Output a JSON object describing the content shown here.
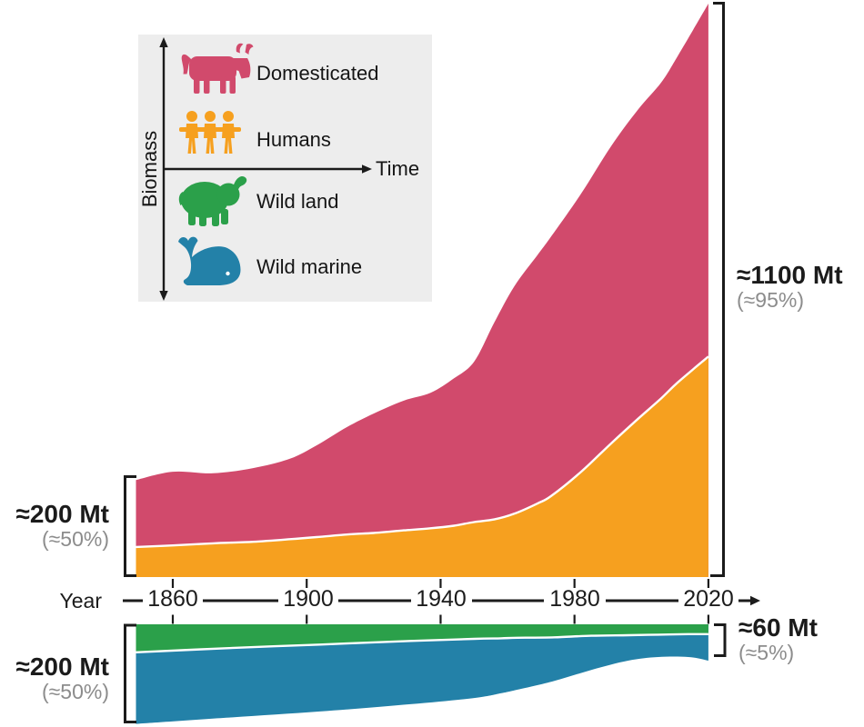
{
  "page": {
    "background": "#ffffff"
  },
  "colors": {
    "domesticated": "#d14a6c",
    "humans": "#f6a01f",
    "wild_land": "#2ba04a",
    "wild_marine": "#2381a8",
    "text_dark": "#1b1b1b",
    "text_gray": "#8c8c8c",
    "legend_bg": "#ededed",
    "separator": "#ffffff"
  },
  "legend": {
    "y_axis_label": "Biomass",
    "x_axis_label": "Time",
    "items": [
      {
        "label": "Domesticated",
        "icon": "cow-icon",
        "color": "#d14a6c"
      },
      {
        "label": "Humans",
        "icon": "humans-icon",
        "color": "#f6a01f"
      },
      {
        "label": "Wild land",
        "icon": "elephant-icon",
        "color": "#2ba04a"
      },
      {
        "label": "Wild marine",
        "icon": "whale-icon",
        "color": "#2381a8"
      }
    ]
  },
  "axis": {
    "label": "Year",
    "ticks": [
      "1860",
      "1900",
      "1940",
      "1980",
      "2020"
    ]
  },
  "annotations": {
    "top_left": {
      "main": "≈200 Mt",
      "sub": "(≈50%)"
    },
    "top_right": {
      "main": "≈1100 Mt",
      "sub": "(≈95%)"
    },
    "bottom_left": {
      "main": "≈200 Mt",
      "sub": "(≈50%)"
    },
    "bottom_right": {
      "main": "≈60 Mt",
      "sub": "(≈5%)"
    }
  },
  "chart_data": [
    {
      "type": "area",
      "id": "surface-biomass",
      "stacked": true,
      "unit": "Mt",
      "orientation": "up",
      "x": {
        "label": "Year",
        "min": 1849,
        "max": 2020,
        "ticks": [
          1860,
          1900,
          1940,
          1980,
          2020
        ]
      },
      "years": [
        1849,
        1860,
        1872,
        1884,
        1895,
        1903,
        1912,
        1920,
        1929,
        1937,
        1944,
        1950,
        1956,
        1962,
        1969,
        1973,
        1982,
        1991,
        1999,
        2006,
        2011,
        2020
      ],
      "series": [
        {
          "name": "Humans",
          "color": "#f6a01f",
          "values": [
            58,
            61,
            65,
            68,
            73,
            77,
            82,
            85,
            90,
            94,
            99,
            106,
            111,
            122,
            142,
            156,
            203,
            258,
            305,
            345,
            376,
            425
          ]
        },
        {
          "name": "Domesticated",
          "color": "#d14a6c",
          "values": [
            129,
            142,
            135,
            142,
            155,
            177,
            207,
            230,
            250,
            261,
            284,
            309,
            379,
            438,
            479,
            500,
            536,
            573,
            596,
            609,
            630,
            680
          ]
        }
      ],
      "totals": {
        "left_label": "≈200 Mt (≈50%)",
        "right_label": "≈1100 Mt (≈95%)"
      }
    },
    {
      "type": "area",
      "id": "wild-biomass",
      "stacked": true,
      "unit": "Mt",
      "orientation": "down",
      "years": [
        1849,
        1876,
        1904,
        1931,
        1950,
        1958,
        1963,
        1974,
        1985,
        1996,
        2005,
        2014,
        2020
      ],
      "series": [
        {
          "name": "Wild land",
          "color": "#2ba04a",
          "values": [
            54,
            46,
            39,
            32,
            28,
            27,
            26,
            25,
            22,
            21,
            20,
            19,
            19
          ]
        },
        {
          "name": "Wild marine",
          "color": "#2381a8",
          "values": [
            138,
            134,
            129,
            122,
            114,
            106,
            100,
            84,
            66,
            49,
            43,
            44,
            51
          ]
        }
      ],
      "totals": {
        "left_label": "≈200 Mt (≈50%)",
        "right_label": "≈60 Mt (≈5%)"
      }
    }
  ]
}
